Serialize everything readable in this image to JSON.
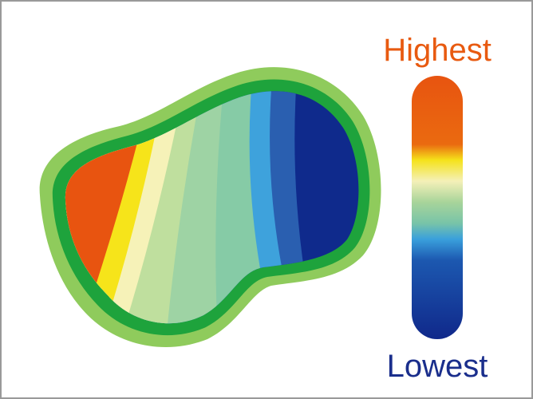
{
  "legend": {
    "high_label": "Highest",
    "low_label": "Lowest"
  }
}
